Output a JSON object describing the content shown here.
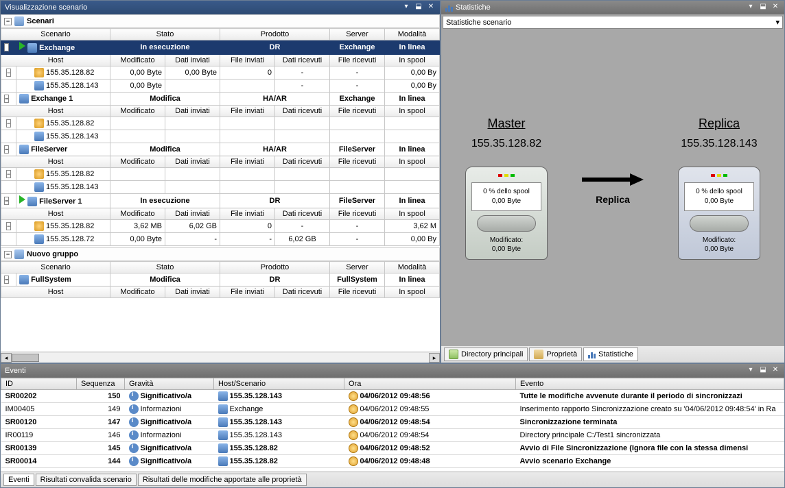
{
  "left_panel": {
    "title": "Visualizzazione scenario"
  },
  "right_panel": {
    "title": "Statistiche",
    "dropdown": "Statistiche scenario"
  },
  "events_panel": {
    "title": "Eventi"
  },
  "groups": [
    {
      "name": "Scenari"
    },
    {
      "name": "Nuovo gruppo"
    }
  ],
  "scenario_cols": [
    "Scenario",
    "Stato",
    "Prodotto",
    "Server",
    "Modalità"
  ],
  "host_cols": [
    "Host",
    "Modificato",
    "Dati inviati",
    "File inviati",
    "Dati ricevuti",
    "File ricevuti",
    "In spool"
  ],
  "scenarios": [
    {
      "name": "Exchange",
      "stato": "In esecuzione",
      "prodotto": "DR",
      "server": "Exchange",
      "modalita": "In linea",
      "running": true,
      "hosts": [
        {
          "ip": "155.35.128.82",
          "icon": "master",
          "mod": "0,00 Byte",
          "sent": "0,00 Byte",
          "fsent": "0",
          "recv": "-",
          "frecv": "-",
          "spool": "0,00 By"
        },
        {
          "ip": "155.35.128.143",
          "icon": "replica",
          "mod": "0,00 Byte",
          "sent": "",
          "fsent": "",
          "recv": "-",
          "frecv": "-",
          "spool": "0,00 By"
        }
      ]
    },
    {
      "name": "Exchange 1",
      "stato": "Modifica",
      "prodotto": "HA/AR",
      "server": "Exchange",
      "modalita": "In linea",
      "running": false,
      "hosts": [
        {
          "ip": "155.35.128.82",
          "icon": "master",
          "mod": "",
          "sent": "",
          "fsent": "",
          "recv": "",
          "frecv": "",
          "spool": ""
        },
        {
          "ip": "155.35.128.143",
          "icon": "replica",
          "mod": "",
          "sent": "",
          "fsent": "",
          "recv": "",
          "frecv": "",
          "spool": ""
        }
      ]
    },
    {
      "name": "FileServer",
      "stato": "Modifica",
      "prodotto": "HA/AR",
      "server": "FileServer",
      "modalita": "In linea",
      "running": false,
      "hosts": [
        {
          "ip": "155.35.128.82",
          "icon": "master",
          "mod": "",
          "sent": "",
          "fsent": "",
          "recv": "",
          "frecv": "",
          "spool": ""
        },
        {
          "ip": "155.35.128.143",
          "icon": "replica",
          "mod": "",
          "sent": "",
          "fsent": "",
          "recv": "",
          "frecv": "",
          "spool": ""
        }
      ]
    },
    {
      "name": "FileServer 1",
      "stato": "In esecuzione",
      "prodotto": "DR",
      "server": "FileServer",
      "modalita": "In linea",
      "running": true,
      "hosts": [
        {
          "ip": "155.35.128.82",
          "icon": "master",
          "mod": "3,62 MB",
          "sent": "6,02 GB",
          "fsent": "0",
          "recv": "-",
          "frecv": "-",
          "spool": "3,62 M"
        },
        {
          "ip": "155.35.128.72",
          "icon": "replica2",
          "mod": "0,00 Byte",
          "sent": "-",
          "fsent": "-",
          "recv": "6,02 GB",
          "frecv": "-",
          "spool": "0,00 By"
        }
      ]
    }
  ],
  "group2_scenarios": [
    {
      "name": "FullSystem",
      "stato": "Modifica",
      "prodotto": "DR",
      "server": "FullSystem",
      "modalita": "In linea",
      "running": false
    }
  ],
  "stats": {
    "master": {
      "title": "Master",
      "ip": "155.35.128.82",
      "spool": "0 % dello spool",
      "bytes": "0,00 Byte",
      "mod_label": "Modificato:",
      "mod_value": "0,00 Byte"
    },
    "replica": {
      "title": "Replica",
      "ip": "155.35.128.143",
      "spool": "0 % dello spool",
      "bytes": "0,00 Byte",
      "mod_label": "Modificato:",
      "mod_value": "0,00 Byte"
    },
    "arrow_label": "Replica"
  },
  "right_tabs": [
    "Directory principali",
    "Proprietà",
    "Statistiche"
  ],
  "event_cols": [
    "ID",
    "Sequenza",
    "Gravità",
    "Host/Scenario",
    "Ora",
    "Evento"
  ],
  "events": [
    {
      "id": "SR00202",
      "seq": "150",
      "grav": "Significativo/a",
      "host": "155.35.128.143",
      "ora": "04/06/2012 09:48:56",
      "ev": "Tutte le modifiche avvenute durante il periodo di sincronizzazi",
      "bold": true
    },
    {
      "id": "IM00405",
      "seq": "149",
      "grav": "Informazioni",
      "host": "Exchange",
      "ora": "04/06/2012 09:48:55",
      "ev": "Inserimento rapporto Sincronizzazione creato su '04/06/2012 09:48:54' in Ra",
      "bold": false
    },
    {
      "id": "SR00120",
      "seq": "147",
      "grav": "Significativo/a",
      "host": "155.35.128.143",
      "ora": "04/06/2012 09:48:54",
      "ev": "Sincronizzazione terminata",
      "bold": true
    },
    {
      "id": "IR00119",
      "seq": "146",
      "grav": "Informazioni",
      "host": "155.35.128.143",
      "ora": "04/06/2012 09:48:54",
      "ev": "Directory principale C:/Test1 sincronizzata",
      "bold": false
    },
    {
      "id": "SR00139",
      "seq": "145",
      "grav": "Significativo/a",
      "host": "155.35.128.82",
      "ora": "04/06/2012 09:48:52",
      "ev": "Avvio di File Sincronizzazione (Ignora file con la stessa dimensi",
      "bold": true
    },
    {
      "id": "SR00014",
      "seq": "144",
      "grav": "Significativo/a",
      "host": "155.35.128.82",
      "ora": "04/06/2012 09:48:48",
      "ev": "Avvio scenario Exchange",
      "bold": true
    }
  ],
  "bottom_tabs": [
    "Eventi",
    "Risultati convalida scenario",
    "Risultati delle modifiche apportate alle proprietà"
  ],
  "colors": {
    "title_active": "#2d4a73",
    "title_inactive": "#6e6e6e",
    "scenario_row": "#1c3a6e"
  }
}
